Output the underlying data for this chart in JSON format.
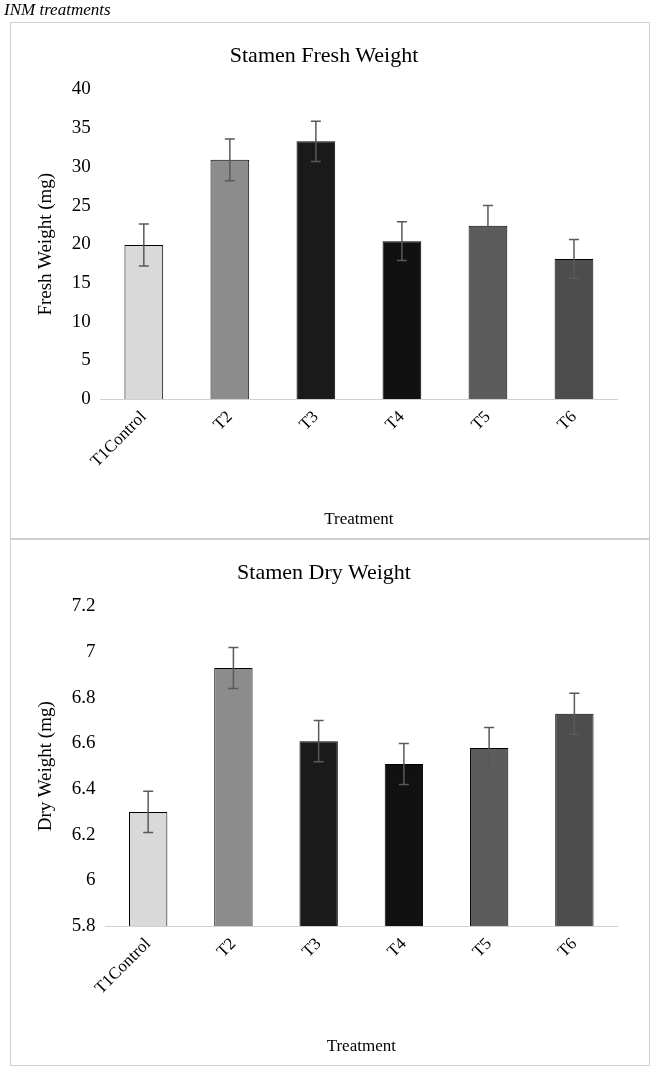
{
  "chart_data": [
    {
      "type": "bar",
      "title": "Stamen Fresh Weight",
      "xlabel": "Treatment",
      "ylabel": "Fresh Weight (mg)",
      "annotations": [
        "INM treatments"
      ],
      "categories": [
        "T1Control",
        "T2",
        "T3",
        "T4",
        "T5",
        "T6"
      ],
      "values": [
        19.9,
        30.9,
        33.3,
        20.4,
        22.4,
        18.1
      ],
      "errors": [
        2.7,
        2.7,
        2.6,
        2.5,
        2.6,
        2.5
      ],
      "colors": [
        "#d9d9d9",
        "#8c8c8c",
        "#1a1a1a",
        "#111111",
        "#5c5c5c",
        "#4d4d4d"
      ],
      "ylim": [
        0,
        40
      ],
      "yticks": [
        0,
        5,
        10,
        15,
        20,
        25,
        30,
        35,
        40
      ],
      "grid": false,
      "legend": false
    },
    {
      "type": "bar",
      "title": "Stamen Dry Weight",
      "xlabel": "Treatment",
      "ylabel": "Dry Weight (mg)",
      "categories": [
        "T1Control",
        "T2",
        "T3",
        "T4",
        "T5",
        "T6"
      ],
      "values": [
        6.3,
        6.93,
        6.61,
        6.51,
        6.58,
        6.73
      ],
      "errors": [
        0.09,
        0.09,
        0.09,
        0.09,
        0.09,
        0.09
      ],
      "colors": [
        "#d9d9d9",
        "#8c8c8c",
        "#1a1a1a",
        "#111111",
        "#5c5c5c",
        "#4d4d4d"
      ],
      "ylim": [
        5.8,
        7.2
      ],
      "yticks": [
        5.8,
        6,
        6.2,
        6.4,
        6.6,
        6.8,
        7,
        7.2
      ],
      "grid": false,
      "legend": false
    }
  ]
}
